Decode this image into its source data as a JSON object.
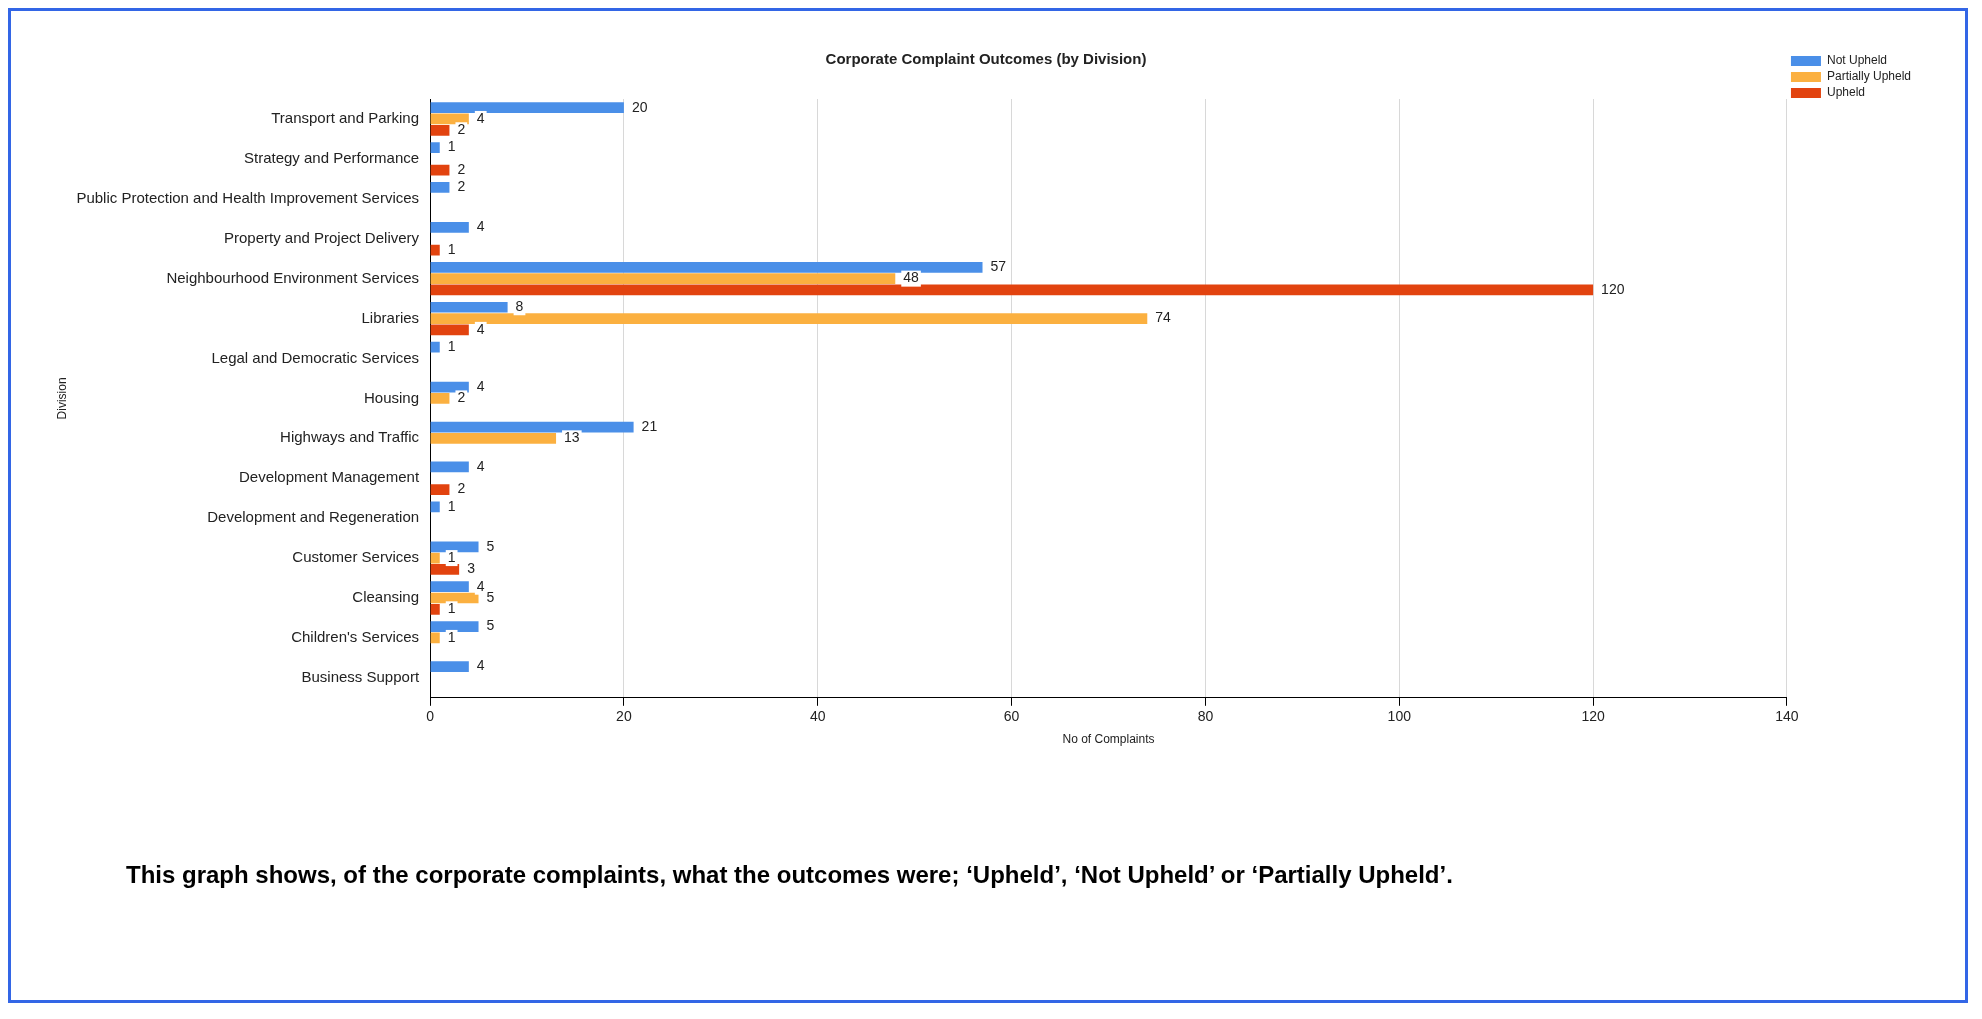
{
  "chart_data": {
    "type": "bar",
    "orientation": "horizontal",
    "title": "Corporate Complaint Outcomes (by Division)",
    "xlabel": "No of Complaints",
    "ylabel": "Division",
    "categories": [
      "Transport and Parking",
      "Strategy and Performance",
      "Public Protection and Health Improvement Services",
      "Property and Project Delivery",
      "Neighbourhood Environment Services",
      "Libraries",
      "Legal and Democratic Services",
      "Housing",
      "Highways and Traffic",
      "Development Management",
      "Development and Regeneration",
      "Customer Services",
      "Cleansing",
      "Children's Services",
      "Business Support"
    ],
    "series": [
      {
        "name": "Not Upheld",
        "color": "#4a8fe8",
        "values": [
          20,
          1,
          2,
          4,
          57,
          8,
          1,
          4,
          21,
          4,
          1,
          5,
          4,
          5,
          4
        ]
      },
      {
        "name": "Partially Upheld",
        "color": "#fbb040",
        "values": [
          4,
          null,
          null,
          null,
          48,
          74,
          null,
          2,
          13,
          null,
          null,
          1,
          5,
          1,
          null
        ]
      },
      {
        "name": "Upheld",
        "color": "#e2430f",
        "values": [
          2,
          2,
          null,
          1,
          120,
          4,
          null,
          null,
          null,
          2,
          null,
          3,
          1,
          null,
          null
        ]
      }
    ],
    "xlim": [
      0,
      140
    ],
    "xticks": [
      0,
      20,
      40,
      60,
      80,
      100,
      120,
      140
    ],
    "grid": "x",
    "legend": "top right",
    "data_labels": true,
    "annotations": [
      "This graph shows, of the corporate complaints, what the outcomes were; ‘Upheld’, ‘Not Upheld’ or ‘Partially Upheld’."
    ]
  }
}
